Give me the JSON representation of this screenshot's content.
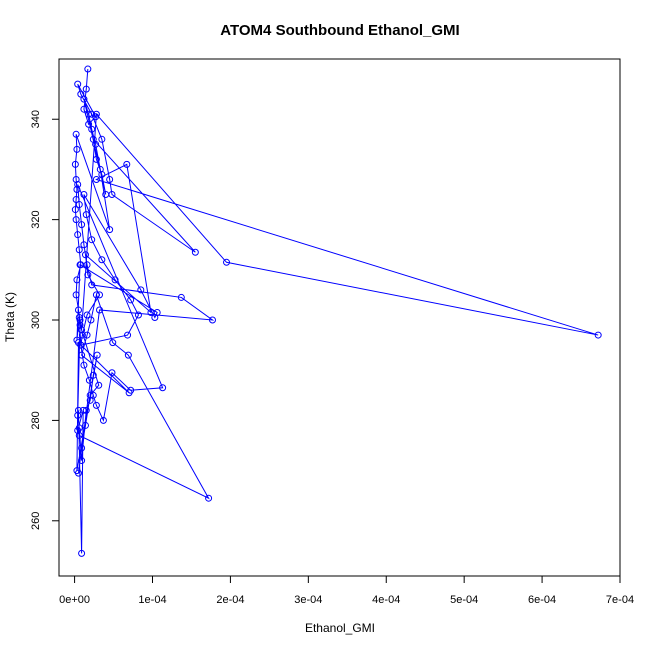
{
  "chart_data": {
    "type": "line",
    "title": "ATOM4 Southbound Ethanol_GMI",
    "xlabel": "Ethanol_GMI",
    "ylabel": "Theta (K)",
    "xlim": [
      -2e-05,
      0.0007
    ],
    "ylim": [
      249,
      352
    ],
    "grid": false,
    "legend": "none",
    "color": "#0000ff",
    "x_ticks": [
      0,
      0.0001,
      0.0002,
      0.0003,
      0.0004,
      0.0005,
      0.0006,
      0.0007
    ],
    "x_tick_labels": [
      "0e+00",
      "1e-04",
      "2e-04",
      "3e-04",
      "4e-04",
      "5e-04",
      "6e-04",
      "7e-04"
    ],
    "y_ticks": [
      260,
      280,
      300,
      320,
      340
    ],
    "y_tick_labels": [
      "260",
      "280",
      "300",
      "320",
      "340"
    ],
    "series": [
      {
        "x": [
          1.7e-05,
          1.5e-05,
          1.2e-05,
          1.8e-05,
          2.7e-05,
          4e-06,
          8e-06,
          2.2e-05,
          3.5e-05,
          4.5e-05,
          4.8e-05,
          0.000155,
          2.4e-05,
          2.8e-05,
          3.5e-05,
          4e-05,
          1.2e-05,
          1.8e-05,
          2.2e-05,
          2.7e-05,
          3.3e-05,
          4.5e-05,
          2e-06,
          3e-06,
          1e-06,
          2e-06,
          3e-06,
          2e-06,
          1e-06,
          2e-06,
          4e-06,
          6e-06,
          8e-06,
          3e-06,
          2e-06,
          5e-06,
          7e-06,
          9e-06,
          2.8e-05,
          0.000195,
          0.000672,
          2.8e-05,
          6.7e-05,
          9.8e-05,
          1.4e-05,
          1.7e-05,
          3.2e-05,
          1.6e-05,
          1e-05,
          8e-06,
          6e-06,
          3e-06,
          7e-06,
          0.000106,
          0.000103,
          8.5e-05,
          1.2e-05,
          1.5e-05,
          2.2e-05,
          3.5e-05,
          5.2e-05,
          7.2e-05,
          8.2e-05,
          6.8e-05,
          8e-06,
          1.2e-05,
          1.9e-05,
          2.4e-05,
          2.8e-05,
          3.7e-05,
          4.8e-05,
          7.2e-05,
          0.000113,
          4e-06,
          6e-06,
          9e-06,
          1.2e-05,
          1.6e-05,
          2.2e-05,
          0.000137,
          0.000177,
          3.2e-05,
          5e-06,
          9e-06,
          1.4e-05,
          2e-05,
          3.1e-05,
          7e-06,
          4e-06,
          6e-06,
          9e-06,
          1.5e-05,
          2e-05,
          2.4e-05,
          2.9e-05,
          3e-06,
          5e-06,
          7e-05,
          9e-06,
          1.6e-05,
          2.1e-05,
          2.8e-05,
          4.9e-05,
          6.9e-05,
          0.000172,
          6e-06,
          4e-06,
          1.1e-05,
          9e-06,
          5e-06
        ],
        "y": [
          350,
          346,
          342,
          339,
          340.5,
          347,
          345,
          341,
          336,
          328,
          325,
          313.5,
          336,
          332,
          329,
          325,
          344,
          341,
          338,
          335,
          330,
          318,
          337,
          334,
          331,
          328,
          326,
          324,
          322,
          320,
          317,
          314,
          311,
          308,
          305,
          302,
          300,
          298,
          341,
          311.5,
          297,
          328,
          331,
          301.5,
          313,
          309,
          305,
          301,
          297,
          295,
          300.5,
          296,
          311,
          301.5,
          300.5,
          306,
          325,
          321,
          316,
          312,
          308,
          304,
          301,
          297,
          295,
          291,
          288,
          285,
          283,
          280,
          289.5,
          286,
          286.5,
          327,
          323,
          319,
          315,
          311,
          307,
          304.5,
          300,
          302,
          269.5,
          274.5,
          279,
          285,
          287,
          299,
          281,
          278.5,
          272,
          282,
          284,
          289,
          293,
          270,
          295.5,
          285.5,
          293,
          297,
          300,
          305,
          295.5,
          293,
          264.5,
          277,
          278,
          282,
          253.5,
          282
        ]
      }
    ]
  }
}
